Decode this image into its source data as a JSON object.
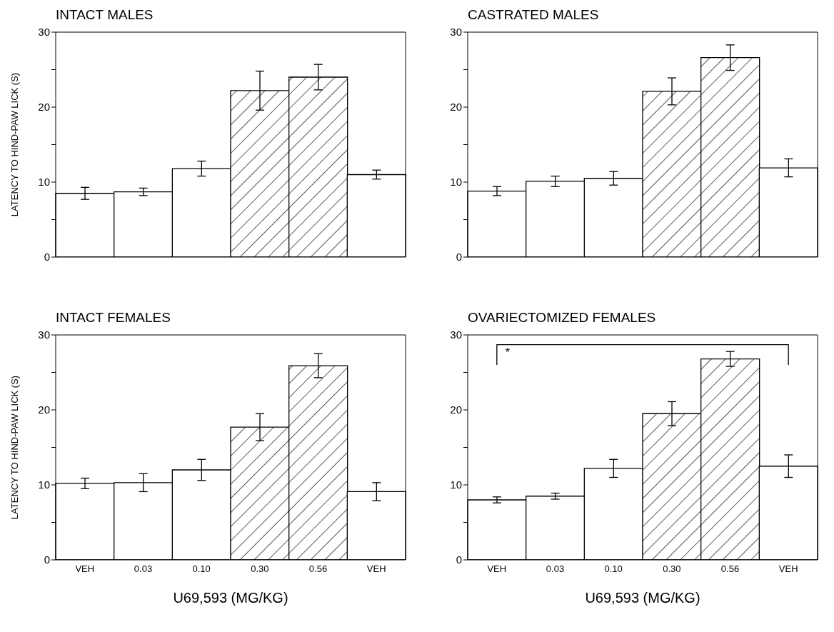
{
  "chart_data": [
    {
      "type": "bar",
      "title": "INTACT MALES",
      "ylabel": "LATENCY TO HIND-PAW LICK (S)",
      "categories": [
        null,
        null,
        null,
        null,
        null,
        null
      ],
      "values": [
        8.5,
        8.7,
        11.8,
        22.2,
        24.0,
        11.0
      ],
      "errors": [
        0.8,
        0.5,
        1.0,
        2.6,
        1.7,
        0.6
      ],
      "colors": [
        "#ffffff",
        "#ffffff",
        "#ffffff",
        "#000000",
        "#000000",
        "#ffffff"
      ],
      "ylim": [
        0,
        30
      ],
      "yticks": [
        0,
        {
          "value": 5,
          "label": null
        },
        10,
        {
          "value": 15,
          "label": null
        },
        20,
        {
          "value": 25,
          "label": null
        },
        30
      ],
      "grid": false,
      "legend": false,
      "tick_labels": "y"
    },
    {
      "type": "bar",
      "title": "CASTRATED MALES",
      "categories": [
        null,
        null,
        null,
        null,
        null,
        null
      ],
      "values": [
        8.8,
        10.1,
        10.5,
        22.1,
        26.6,
        11.9
      ],
      "errors": [
        0.6,
        0.7,
        0.9,
        1.8,
        1.7,
        1.2
      ],
      "colors": [
        "#ffffff",
        "#ffffff",
        "#ffffff",
        "#000000",
        "#000000",
        "#ffffff"
      ],
      "ylim": [
        0,
        30
      ],
      "yticks": [
        0,
        {
          "value": 5,
          "label": null
        },
        10,
        {
          "value": 15,
          "label": null
        },
        20,
        {
          "value": 25,
          "label": null
        },
        30
      ],
      "grid": false,
      "legend": false,
      "tick_labels": "y"
    },
    {
      "type": "bar",
      "title": "INTACT FEMALES",
      "ylabel": "LATENCY TO HIND-PAW LICK (S)",
      "xlabel": "U69,593 (MG/KG)",
      "categories": [
        "VEH",
        "0.03",
        "0.10",
        "0.30",
        "0.56",
        "VEH"
      ],
      "values": [
        10.2,
        10.3,
        12.0,
        17.7,
        25.9,
        9.1
      ],
      "errors": [
        0.7,
        1.2,
        1.4,
        1.8,
        1.6,
        1.2
      ],
      "colors": [
        "#ffffff",
        "#ffffff",
        "#ffffff",
        "#000000",
        "#000000",
        "#ffffff"
      ],
      "ylim": [
        0,
        30
      ],
      "yticks": [
        0,
        {
          "value": 5,
          "label": null
        },
        10,
        {
          "value": 15,
          "label": null
        },
        20,
        {
          "value": 25,
          "label": null
        },
        30
      ],
      "grid": false,
      "legend": false
    },
    {
      "type": "bar",
      "title": "OVARIECTOMIZED FEMALES",
      "xlabel": "U69,593 (MG/KG)",
      "categories": [
        "VEH",
        "0.03",
        "0.10",
        "0.30",
        "0.56",
        "VEH"
      ],
      "values": [
        8.0,
        8.5,
        12.2,
        19.5,
        26.8,
        12.5
      ],
      "errors": [
        0.4,
        0.4,
        1.2,
        1.6,
        1.0,
        1.5
      ],
      "colors": [
        "#ffffff",
        "#ffffff",
        "#ffffff",
        "#000000",
        "#000000",
        "#ffffff"
      ],
      "ylim": [
        0,
        30
      ],
      "yticks": [
        0,
        {
          "value": 5,
          "label": null
        },
        10,
        {
          "value": 15,
          "label": null
        },
        20,
        {
          "value": 25,
          "label": null
        },
        30
      ],
      "grid": false,
      "legend": false,
      "annotations": [
        "*"
      ]
    }
  ]
}
